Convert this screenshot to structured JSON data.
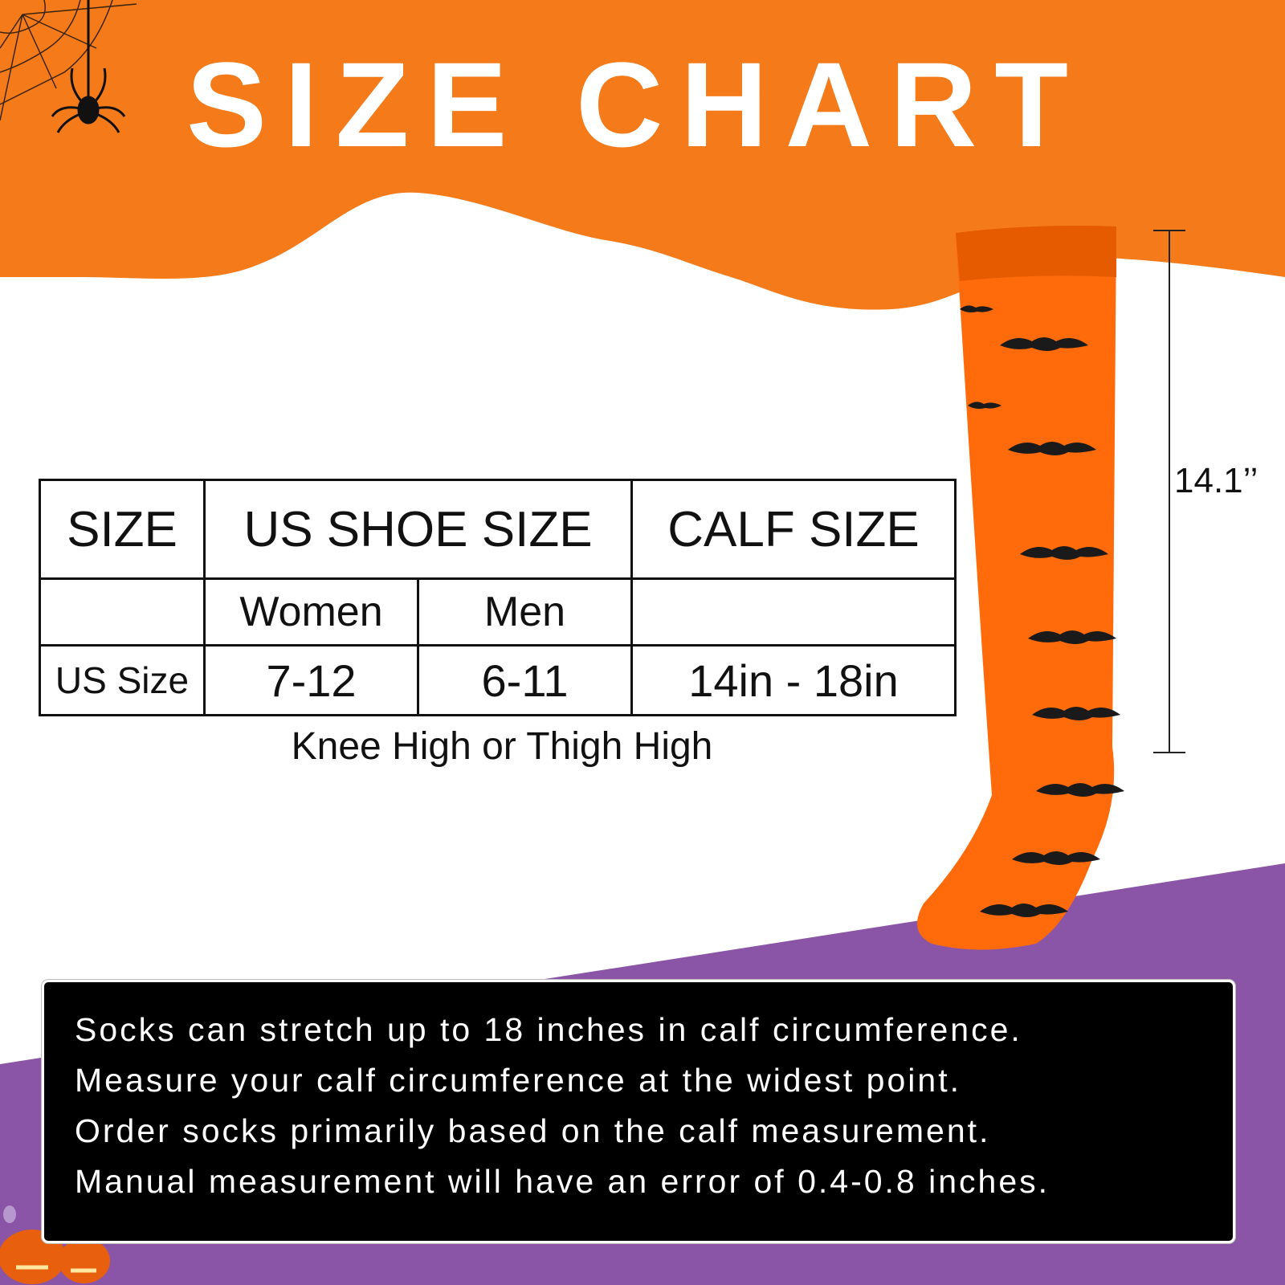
{
  "title": "SIZE CHART",
  "colors": {
    "orange": "#f47a1a",
    "purple": "#8a55a6",
    "sock": "#ff6a0a",
    "panel": "#000000"
  },
  "icons": [
    "spider-web-icon",
    "spider-icon",
    "bat-icon",
    "pumpkin-icon",
    "ghost-icon"
  ],
  "table": {
    "headers": [
      "SIZE",
      "US SHOE SIZE",
      "CALF SIZE"
    ],
    "subheaders": [
      "",
      "Women",
      "Men",
      ""
    ],
    "rows": [
      [
        "US Size",
        "7-12",
        "6-11",
        "14in - 18in"
      ]
    ]
  },
  "note": "Knee High or Thigh High",
  "sock_length": "14.1’’",
  "info_lines": [
    "Socks can stretch up to 18 inches in calf circumference.",
    "Measure your calf circumference at the widest point.",
    "Order socks primarily based on the calf measurement.",
    "Manual measurement will have an error of 0.4-0.8 inches."
  ]
}
